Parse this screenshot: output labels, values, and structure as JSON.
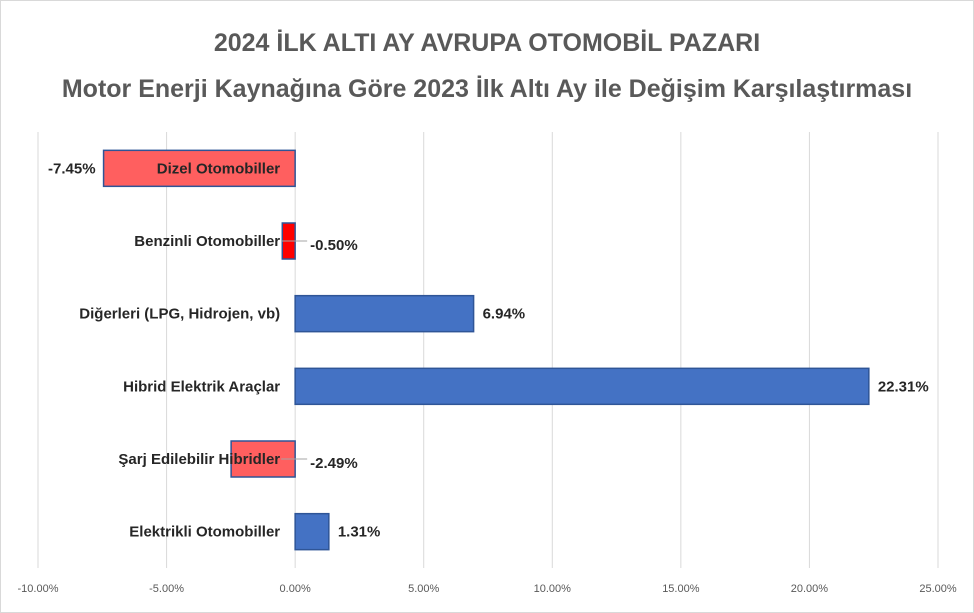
{
  "chart_data": {
    "type": "bar",
    "orientation": "horizontal",
    "title": "2024 İLK ALTI AY AVRUPA OTOMOBİL PAZARI",
    "subtitle": "Motor Enerji Kaynağına Göre 2023 İlk Altı Ay ile Değişim Karşılaştırması",
    "categories": [
      "Dizel Otomobiller",
      "Benzinli Otomobiller",
      "Diğerleri (LPG, Hidrojen, vb)",
      "Hibrid Elektrik Araçlar",
      "Şarj Edilebilir Hibridler",
      "Elektrikli Otomobiller"
    ],
    "values": [
      -7.45,
      -0.5,
      6.94,
      22.31,
      -2.49,
      1.31
    ],
    "value_labels": [
      "-7.45%",
      "-0.50%",
      "6.94%",
      "22.31%",
      "-2.49%",
      "1.31%"
    ],
    "xlim": [
      -10,
      25
    ],
    "x_ticks": [
      -10,
      -5,
      0,
      5,
      10,
      15,
      20,
      25
    ],
    "x_tick_labels": [
      "-10.00%",
      "-5.00%",
      "0.00%",
      "5.00%",
      "10.00%",
      "15.00%",
      "20.00%",
      "25.00%"
    ],
    "grid": true,
    "legend": "none",
    "colors": {
      "positive_fill": "#4472c4",
      "negative_fill": "#ff5f5f",
      "small_negative_fill": "#ff0000",
      "bar_border": "#2f5597",
      "grid": "#d9d9d9",
      "title": "#595959"
    }
  }
}
